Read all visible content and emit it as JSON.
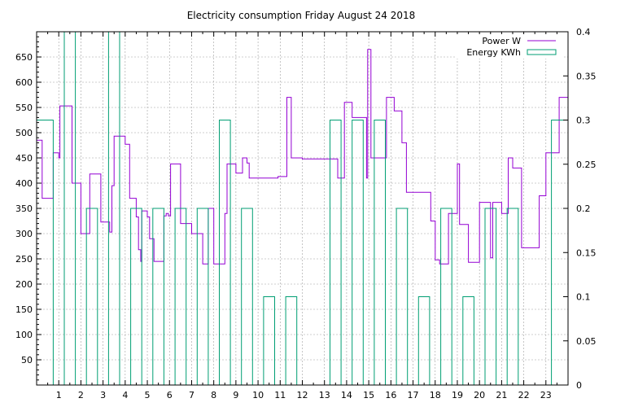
{
  "chart_data": {
    "type": "line",
    "title": "Electricity consumption Friday August 24 2018",
    "xlabel": "",
    "ylabel": "",
    "y2label": "",
    "xlim": [
      0,
      24
    ],
    "ylim": [
      0,
      700
    ],
    "y2lim": [
      0,
      0.4
    ],
    "x_ticks": [
      1,
      2,
      3,
      4,
      5,
      6,
      7,
      8,
      9,
      10,
      11,
      12,
      13,
      14,
      15,
      16,
      17,
      18,
      19,
      20,
      21,
      22,
      23
    ],
    "y_ticks": [
      50,
      100,
      150,
      200,
      250,
      300,
      350,
      400,
      450,
      500,
      550,
      600,
      650
    ],
    "y2_ticks": [
      "0",
      "0.05",
      "0.1",
      "0.15",
      "0.2",
      "0.25",
      "0.3",
      "0.35",
      "0.4"
    ],
    "y2_tick_values": [
      0,
      0.05,
      0.1,
      0.15,
      0.2,
      0.25,
      0.3,
      0.35,
      0.4
    ],
    "grid": true,
    "legend_position": "top-right",
    "series": [
      {
        "name": "Power W",
        "axis": "y1",
        "color": "#9400d3",
        "style": "step",
        "x": [
          0,
          0.25,
          0.75,
          1.0,
          1.05,
          1.6,
          2.0,
          2.2,
          2.4,
          2.9,
          3.3,
          3.4,
          3.5,
          4.0,
          4.2,
          4.5,
          4.6,
          4.7,
          4.75,
          5.0,
          5.1,
          5.3,
          5.75,
          5.85,
          5.95,
          6.05,
          6.5,
          7.0,
          7.5,
          7.75,
          8.0,
          8.1,
          8.5,
          8.6,
          9.0,
          9.3,
          9.5,
          9.6,
          10.5,
          10.9,
          11.3,
          11.5,
          12.0,
          13.0,
          13.6,
          13.9,
          14.25,
          14.9,
          14.95,
          15.1,
          15.5,
          15.8,
          16.15,
          16.5,
          16.7,
          17.5,
          17.8,
          18.0,
          18.2,
          18.6,
          19.0,
          19.1,
          19.5,
          20.0,
          20.3,
          20.5,
          20.6,
          21.0,
          21.3,
          21.5,
          21.9,
          22.3,
          22.7,
          23.0,
          23.4,
          23.6,
          24.0
        ],
        "y": [
          485,
          370,
          460,
          450,
          553,
          400,
          300,
          300,
          418,
          323,
          303,
          395,
          493,
          477,
          370,
          333,
          268,
          245,
          345,
          333,
          290,
          245,
          335,
          340,
          335,
          438,
          320,
          300,
          240,
          350,
          240,
          240,
          340,
          438,
          420,
          450,
          440,
          410,
          410,
          413,
          570,
          450,
          448,
          448,
          410,
          560,
          530,
          410,
          665,
          450,
          450,
          570,
          543,
          480,
          382,
          382,
          325,
          248,
          240,
          340,
          438,
          318,
          243,
          362,
          362,
          252,
          362,
          340,
          450,
          430,
          272,
          272,
          375,
          460,
          460,
          570,
          395
        ]
      },
      {
        "name": "Energy KWh",
        "axis": "y2",
        "color": "#009e73",
        "style": "step",
        "x": [
          0,
          0.75,
          1.25,
          1.75,
          2.25,
          2.75,
          3.25,
          3.75,
          4.25,
          4.75,
          5.25,
          5.75,
          6.25,
          6.75,
          7.25,
          7.75,
          8.25,
          8.75,
          9.25,
          9.75,
          10.25,
          10.75,
          11.25,
          11.75,
          12.25,
          12.75,
          13.25,
          13.75,
          14.25,
          14.75,
          15.25,
          15.75,
          16.25,
          16.75,
          17.25,
          17.75,
          18.25,
          18.75,
          19.25,
          19.75,
          20.25,
          20.75,
          21.25,
          21.75,
          22.25,
          22.75,
          23.25,
          24.0
        ],
        "y": [
          0.3,
          0,
          0.4,
          0,
          0.2,
          0,
          0.4,
          0,
          0.2,
          0,
          0.2,
          0,
          0.2,
          0,
          0.2,
          0,
          0.3,
          0,
          0.2,
          0,
          0.1,
          0,
          0.1,
          0,
          0,
          0,
          0.3,
          0,
          0.3,
          0,
          0.3,
          0,
          0.2,
          0,
          0.1,
          0,
          0.2,
          0,
          0.1,
          0,
          0.2,
          0,
          0.2,
          0,
          0,
          0,
          0.3,
          0.3
        ]
      }
    ]
  }
}
